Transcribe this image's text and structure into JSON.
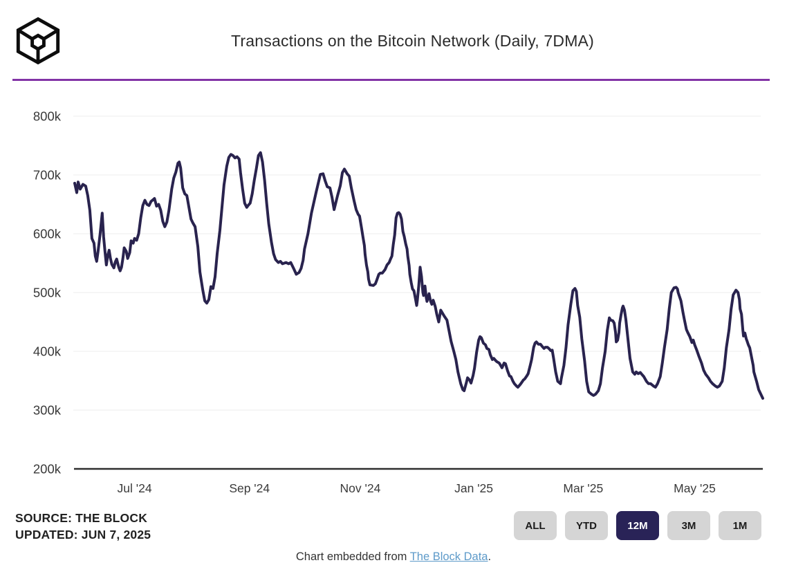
{
  "header": {
    "title": "Transactions on the Bitcoin Network (Daily, 7DMA)",
    "logo_name": "the-block-cube-logo"
  },
  "colors": {
    "line": "#29234E",
    "grid": "#EDEDED",
    "axis": "#2E2E2E",
    "tick_text": "#3A3A3A",
    "divider": "#8233A6",
    "button_bg": "#D5D5D5",
    "button_text": "#1C1C1C",
    "button_active_bg": "#292357",
    "button_active_text": "#FFFFFF",
    "link": "#5D9AC9",
    "title_text": "#2B2B2B"
  },
  "chart_data": {
    "type": "line",
    "title": "Transactions on the Bitcoin Network (Daily, 7DMA)",
    "series_name": "Bitcoin daily transactions (7-day moving average)",
    "unit": "values in thousands of transactions (k)",
    "x_range": [
      "Jun 2024",
      "Jun 2025"
    ],
    "ylim_thousands": [
      200,
      800
    ],
    "grid": "horizontal",
    "legend": "none",
    "y_axis": {
      "ticks": [
        {
          "label": "800k",
          "value": 800
        },
        {
          "label": "700k",
          "value": 700
        },
        {
          "label": "600k",
          "value": 600
        },
        {
          "label": "500k",
          "value": 500
        },
        {
          "label": "400k",
          "value": 400
        },
        {
          "label": "300k",
          "value": 300
        },
        {
          "label": "200k",
          "value": 200
        }
      ]
    },
    "x_axis": {
      "ticks": [
        {
          "label": "Jul '24",
          "t": 0.087
        },
        {
          "label": "Sep '24",
          "t": 0.254
        },
        {
          "label": "Nov '24",
          "t": 0.415
        },
        {
          "label": "Jan '25",
          "t": 0.58
        },
        {
          "label": "Mar '25",
          "t": 0.739
        },
        {
          "label": "May '25",
          "t": 0.901
        }
      ]
    },
    "points": [
      [
        0,
        686
      ],
      [
        0.003,
        670
      ],
      [
        0.005,
        688
      ],
      [
        0.008,
        676
      ],
      [
        0.012,
        684
      ],
      [
        0.016,
        681
      ],
      [
        0.019,
        665
      ],
      [
        0.022,
        640
      ],
      [
        0.025,
        592
      ],
      [
        0.028,
        584
      ],
      [
        0.03,
        562
      ],
      [
        0.032,
        553
      ],
      [
        0.034,
        570
      ],
      [
        0.037,
        600
      ],
      [
        0.04,
        635
      ],
      [
        0.042,
        595
      ],
      [
        0.044,
        570
      ],
      [
        0.046,
        547
      ],
      [
        0.048,
        563
      ],
      [
        0.05,
        572
      ],
      [
        0.052,
        558
      ],
      [
        0.054,
        548
      ],
      [
        0.057,
        542
      ],
      [
        0.059,
        552
      ],
      [
        0.061,
        557
      ],
      [
        0.064,
        543
      ],
      [
        0.066,
        537
      ],
      [
        0.068,
        543
      ],
      [
        0.07,
        558
      ],
      [
        0.072,
        576
      ],
      [
        0.075,
        570
      ],
      [
        0.077,
        558
      ],
      [
        0.08,
        568
      ],
      [
        0.082,
        588
      ],
      [
        0.085,
        584
      ],
      [
        0.087,
        592
      ],
      [
        0.09,
        589
      ],
      [
        0.093,
        600
      ],
      [
        0.096,
        627
      ],
      [
        0.099,
        648
      ],
      [
        0.102,
        657
      ],
      [
        0.105,
        650
      ],
      [
        0.108,
        648
      ],
      [
        0.111,
        655
      ],
      [
        0.114,
        658
      ],
      [
        0.116,
        660
      ],
      [
        0.119,
        647
      ],
      [
        0.122,
        650
      ],
      [
        0.125,
        640
      ],
      [
        0.128,
        621
      ],
      [
        0.131,
        612
      ],
      [
        0.134,
        620
      ],
      [
        0.137,
        640
      ],
      [
        0.141,
        676
      ],
      [
        0.144,
        695
      ],
      [
        0.147,
        705
      ],
      [
        0.15,
        720
      ],
      [
        0.152,
        722
      ],
      [
        0.154,
        712
      ],
      [
        0.157,
        678
      ],
      [
        0.16,
        668
      ],
      [
        0.163,
        665
      ],
      [
        0.166,
        645
      ],
      [
        0.169,
        625
      ],
      [
        0.172,
        618
      ],
      [
        0.175,
        612
      ],
      [
        0.179,
        578
      ],
      [
        0.182,
        535
      ],
      [
        0.186,
        505
      ],
      [
        0.189,
        486
      ],
      [
        0.192,
        482
      ],
      [
        0.195,
        488
      ],
      [
        0.198,
        510
      ],
      [
        0.201,
        507
      ],
      [
        0.204,
        527
      ],
      [
        0.207,
        566
      ],
      [
        0.211,
        605
      ],
      [
        0.214,
        644
      ],
      [
        0.217,
        683
      ],
      [
        0.221,
        715
      ],
      [
        0.224,
        730
      ],
      [
        0.227,
        735
      ],
      [
        0.23,
        733
      ],
      [
        0.233,
        729
      ],
      [
        0.236,
        731
      ],
      [
        0.239,
        727
      ],
      [
        0.241,
        704
      ],
      [
        0.244,
        676
      ],
      [
        0.247,
        652
      ],
      [
        0.25,
        645
      ],
      [
        0.252,
        648
      ],
      [
        0.255,
        652
      ],
      [
        0.258,
        668
      ],
      [
        0.261,
        691
      ],
      [
        0.264,
        711
      ],
      [
        0.267,
        733
      ],
      [
        0.27,
        738
      ],
      [
        0.273,
        722
      ],
      [
        0.276,
        691
      ],
      [
        0.279,
        652
      ],
      [
        0.282,
        617
      ],
      [
        0.286,
        585
      ],
      [
        0.289,
        566
      ],
      [
        0.292,
        556
      ],
      [
        0.296,
        551
      ],
      [
        0.299,
        553
      ],
      [
        0.302,
        549
      ],
      [
        0.307,
        551
      ],
      [
        0.311,
        549
      ],
      [
        0.314,
        551
      ],
      [
        0.319,
        539
      ],
      [
        0.322,
        531
      ],
      [
        0.326,
        534
      ],
      [
        0.329,
        541
      ],
      [
        0.332,
        555
      ],
      [
        0.334,
        574
      ],
      [
        0.339,
        600
      ],
      [
        0.344,
        635
      ],
      [
        0.351,
        671
      ],
      [
        0.357,
        701
      ],
      [
        0.361,
        702
      ],
      [
        0.364,
        690
      ],
      [
        0.367,
        680
      ],
      [
        0.371,
        678
      ],
      [
        0.374,
        662
      ],
      [
        0.377,
        641
      ],
      [
        0.382,
        665
      ],
      [
        0.386,
        682
      ],
      [
        0.389,
        704
      ],
      [
        0.392,
        710
      ],
      [
        0.396,
        702
      ],
      [
        0.399,
        698
      ],
      [
        0.402,
        678
      ],
      [
        0.406,
        656
      ],
      [
        0.409,
        641
      ],
      [
        0.412,
        633
      ],
      [
        0.414,
        630
      ],
      [
        0.417,
        609
      ],
      [
        0.419,
        594
      ],
      [
        0.421,
        580
      ],
      [
        0.422,
        565
      ],
      [
        0.424,
        547
      ],
      [
        0.426,
        535
      ],
      [
        0.427,
        523
      ],
      [
        0.429,
        513
      ],
      [
        0.434,
        512
      ],
      [
        0.437,
        515
      ],
      [
        0.439,
        521
      ],
      [
        0.442,
        531
      ],
      [
        0.444,
        533
      ],
      [
        0.447,
        533
      ],
      [
        0.451,
        539
      ],
      [
        0.454,
        547
      ],
      [
        0.457,
        551
      ],
      [
        0.459,
        557
      ],
      [
        0.461,
        562
      ],
      [
        0.463,
        582
      ],
      [
        0.465,
        598
      ],
      [
        0.467,
        627
      ],
      [
        0.469,
        635
      ],
      [
        0.471,
        636
      ],
      [
        0.473,
        633
      ],
      [
        0.475,
        625
      ],
      [
        0.477,
        604
      ],
      [
        0.479,
        595
      ],
      [
        0.481,
        583
      ],
      [
        0.483,
        574
      ],
      [
        0.484,
        562
      ],
      [
        0.486,
        546
      ],
      [
        0.487,
        531
      ],
      [
        0.489,
        517
      ],
      [
        0.491,
        506
      ],
      [
        0.493,
        503
      ],
      [
        0.495,
        491
      ],
      [
        0.497,
        478
      ],
      [
        0.498,
        487
      ],
      [
        0.5,
        511
      ],
      [
        0.501,
        527
      ],
      [
        0.502,
        543
      ],
      [
        0.504,
        527
      ],
      [
        0.506,
        500
      ],
      [
        0.507,
        495
      ],
      [
        0.509,
        511
      ],
      [
        0.511,
        491
      ],
      [
        0.512,
        485
      ],
      [
        0.515,
        498
      ],
      [
        0.517,
        486
      ],
      [
        0.519,
        480
      ],
      [
        0.521,
        487
      ],
      [
        0.524,
        476
      ],
      [
        0.526,
        464
      ],
      [
        0.529,
        450
      ],
      [
        0.532,
        470
      ],
      [
        0.534,
        466
      ],
      [
        0.537,
        460
      ],
      [
        0.541,
        453
      ],
      [
        0.544,
        435
      ],
      [
        0.547,
        417
      ],
      [
        0.551,
        400
      ],
      [
        0.554,
        386
      ],
      [
        0.557,
        365
      ],
      [
        0.561,
        345
      ],
      [
        0.564,
        335
      ],
      [
        0.566,
        333
      ],
      [
        0.569,
        346
      ],
      [
        0.571,
        355
      ],
      [
        0.574,
        351
      ],
      [
        0.576,
        346
      ],
      [
        0.579,
        359
      ],
      [
        0.581,
        371
      ],
      [
        0.584,
        398
      ],
      [
        0.587,
        419
      ],
      [
        0.589,
        425
      ],
      [
        0.591,
        423
      ],
      [
        0.594,
        414
      ],
      [
        0.597,
        411
      ],
      [
        0.599,
        405
      ],
      [
        0.602,
        403
      ],
      [
        0.604,
        394
      ],
      [
        0.607,
        386
      ],
      [
        0.609,
        388
      ],
      [
        0.612,
        384
      ],
      [
        0.614,
        382
      ],
      [
        0.617,
        380
      ],
      [
        0.619,
        376
      ],
      [
        0.621,
        372
      ],
      [
        0.624,
        380
      ],
      [
        0.626,
        379
      ],
      [
        0.629,
        367
      ],
      [
        0.632,
        358
      ],
      [
        0.634,
        357
      ],
      [
        0.637,
        349
      ],
      [
        0.639,
        345
      ],
      [
        0.642,
        341
      ],
      [
        0.644,
        339
      ],
      [
        0.647,
        343
      ],
      [
        0.649,
        346
      ],
      [
        0.652,
        351
      ],
      [
        0.654,
        353
      ],
      [
        0.657,
        358
      ],
      [
        0.659,
        362
      ],
      [
        0.662,
        376
      ],
      [
        0.664,
        386
      ],
      [
        0.667,
        407
      ],
      [
        0.669,
        414
      ],
      [
        0.671,
        416
      ],
      [
        0.674,
        412
      ],
      [
        0.677,
        412
      ],
      [
        0.679,
        409
      ],
      [
        0.682,
        405
      ],
      [
        0.684,
        407
      ],
      [
        0.687,
        407
      ],
      [
        0.689,
        405
      ],
      [
        0.692,
        401
      ],
      [
        0.694,
        402
      ],
      [
        0.696,
        388
      ],
      [
        0.699,
        365
      ],
      [
        0.702,
        349
      ],
      [
        0.706,
        345
      ],
      [
        0.707,
        353
      ],
      [
        0.711,
        376
      ],
      [
        0.714,
        406
      ],
      [
        0.717,
        445
      ],
      [
        0.721,
        480
      ],
      [
        0.724,
        503
      ],
      [
        0.727,
        507
      ],
      [
        0.729,
        502
      ],
      [
        0.731,
        478
      ],
      [
        0.734,
        458
      ],
      [
        0.737,
        421
      ],
      [
        0.741,
        384
      ],
      [
        0.744,
        349
      ],
      [
        0.747,
        331
      ],
      [
        0.751,
        327
      ],
      [
        0.754,
        325
      ],
      [
        0.757,
        327
      ],
      [
        0.761,
        333
      ],
      [
        0.764,
        345
      ],
      [
        0.767,
        372
      ],
      [
        0.771,
        400
      ],
      [
        0.774,
        435
      ],
      [
        0.777,
        457
      ],
      [
        0.779,
        453
      ],
      [
        0.782,
        452
      ],
      [
        0.784,
        448
      ],
      [
        0.786,
        432
      ],
      [
        0.787,
        416
      ],
      [
        0.789,
        419
      ],
      [
        0.791,
        432
      ],
      [
        0.792,
        448
      ],
      [
        0.794,
        462
      ],
      [
        0.796,
        474
      ],
      [
        0.797,
        477
      ],
      [
        0.799,
        470
      ],
      [
        0.801,
        454
      ],
      [
        0.804,
        421
      ],
      [
        0.807,
        388
      ],
      [
        0.811,
        365
      ],
      [
        0.814,
        361
      ],
      [
        0.816,
        365
      ],
      [
        0.819,
        362
      ],
      [
        0.822,
        364
      ],
      [
        0.824,
        361
      ],
      [
        0.827,
        357
      ],
      [
        0.831,
        349
      ],
      [
        0.834,
        345
      ],
      [
        0.837,
        345
      ],
      [
        0.841,
        341
      ],
      [
        0.844,
        339
      ],
      [
        0.847,
        345
      ],
      [
        0.851,
        357
      ],
      [
        0.854,
        380
      ],
      [
        0.857,
        406
      ],
      [
        0.861,
        437
      ],
      [
        0.864,
        472
      ],
      [
        0.867,
        500
      ],
      [
        0.871,
        508
      ],
      [
        0.874,
        509
      ],
      [
        0.876,
        506
      ],
      [
        0.877,
        500
      ],
      [
        0.881,
        486
      ],
      [
        0.884,
        466
      ],
      [
        0.886,
        454
      ],
      [
        0.889,
        437
      ],
      [
        0.891,
        432
      ],
      [
        0.894,
        425
      ],
      [
        0.897,
        415
      ],
      [
        0.899,
        419
      ],
      [
        0.901,
        411
      ],
      [
        0.904,
        402
      ],
      [
        0.907,
        392
      ],
      [
        0.911,
        380
      ],
      [
        0.914,
        368
      ],
      [
        0.917,
        361
      ],
      [
        0.921,
        355
      ],
      [
        0.924,
        349
      ],
      [
        0.927,
        345
      ],
      [
        0.931,
        341
      ],
      [
        0.934,
        339
      ],
      [
        0.937,
        341
      ],
      [
        0.941,
        349
      ],
      [
        0.944,
        372
      ],
      [
        0.947,
        406
      ],
      [
        0.951,
        437
      ],
      [
        0.954,
        472
      ],
      [
        0.957,
        496
      ],
      [
        0.961,
        504
      ],
      [
        0.964,
        500
      ],
      [
        0.966,
        488
      ],
      [
        0.967,
        472
      ],
      [
        0.969,
        463
      ],
      [
        0.971,
        437
      ],
      [
        0.972,
        426
      ],
      [
        0.974,
        431
      ],
      [
        0.976,
        421
      ],
      [
        0.977,
        418
      ],
      [
        0.979,
        411
      ],
      [
        0.981,
        406
      ],
      [
        0.982,
        400
      ],
      [
        0.984,
        388
      ],
      [
        0.986,
        376
      ],
      [
        0.987,
        365
      ],
      [
        0.991,
        349
      ],
      [
        0.994,
        335
      ],
      [
        1,
        320
      ]
    ]
  },
  "footer": {
    "source": "SOURCE: THE BLOCK",
    "updated": "UPDATED: JUN 7, 2025",
    "range_buttons": [
      {
        "label": "ALL",
        "active": false
      },
      {
        "label": "YTD",
        "active": false
      },
      {
        "label": "12M",
        "active": true
      },
      {
        "label": "3M",
        "active": false
      },
      {
        "label": "1M",
        "active": false
      }
    ],
    "embed_note": {
      "prefix": "Chart embedded from ",
      "link_text": "The Block Data",
      "suffix": "."
    }
  }
}
